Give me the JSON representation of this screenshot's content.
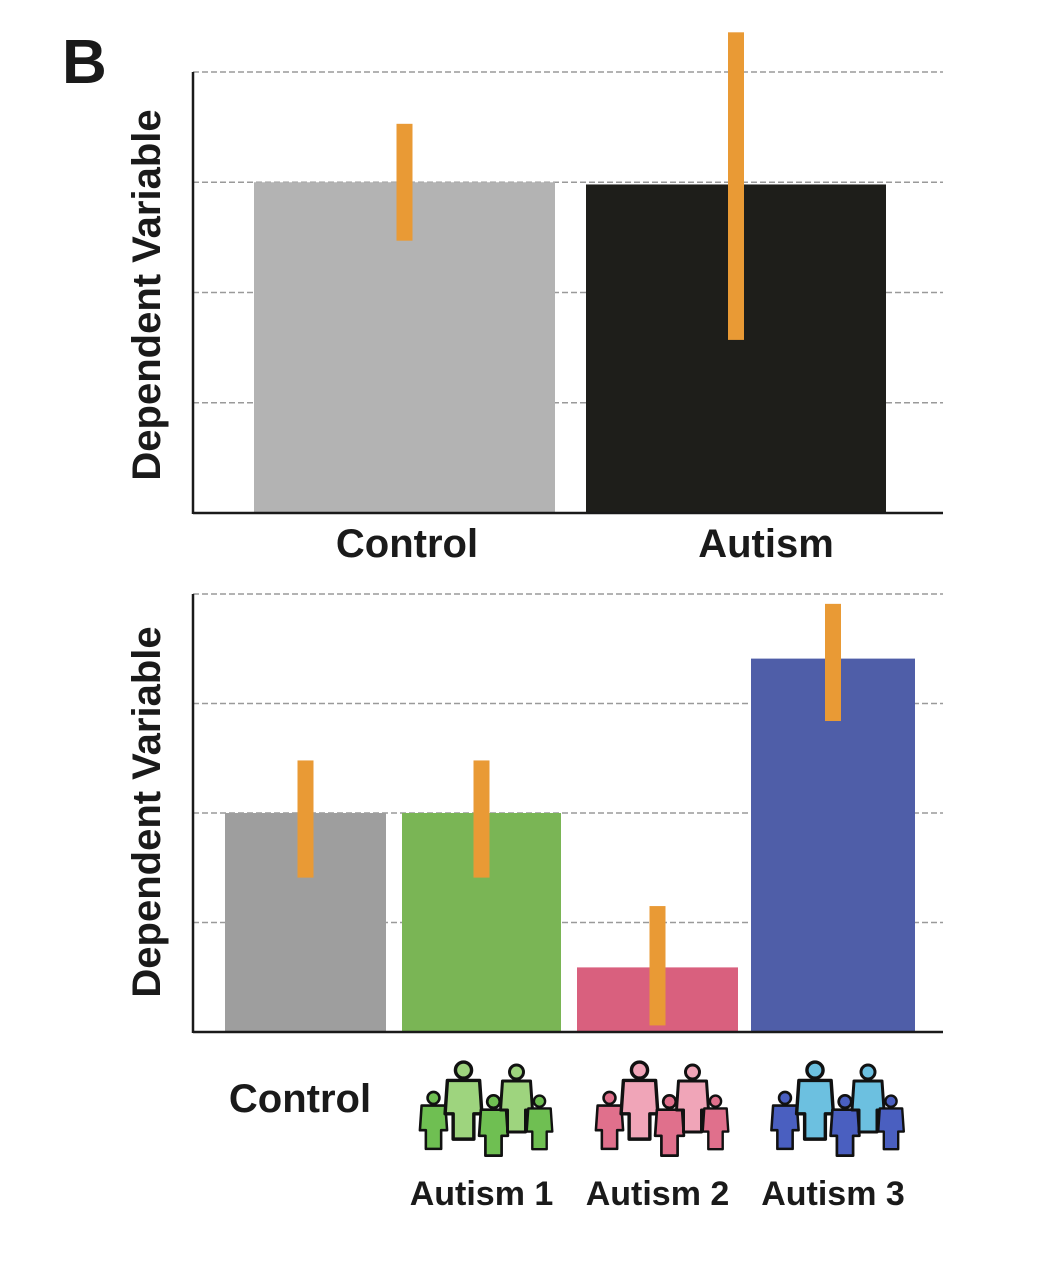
{
  "panel_label": "B",
  "colors": {
    "error_bar": "#e99a35",
    "grid": "#9a9a9a",
    "axis": "#1a1a1a"
  },
  "chart_data": [
    {
      "type": "bar",
      "ylabel": "Dependent Variable",
      "ylim": [
        0,
        4
      ],
      "grid": true,
      "gridlines": [
        1,
        2,
        3,
        4
      ],
      "tick_labels_shown": false,
      "categories": [
        "Control",
        "Autism"
      ],
      "values": [
        3.0,
        2.98
      ],
      "error_low": [
        2.47,
        1.57
      ],
      "error_high": [
        3.53,
        4.36
      ],
      "bar_colors": [
        "#b3b3b3",
        "#1e1e1a"
      ]
    },
    {
      "type": "bar",
      "ylabel": "Dependent Variable",
      "ylim": [
        0,
        4
      ],
      "grid": true,
      "gridlines": [
        1,
        2,
        3,
        4
      ],
      "tick_labels_shown": false,
      "categories": [
        "Control",
        "Autism 1",
        "Autism 2",
        "Autism 3"
      ],
      "values": [
        2.0,
        2.0,
        0.59,
        3.41
      ],
      "error_low": [
        1.41,
        1.41,
        0.06,
        2.84
      ],
      "error_high": [
        2.48,
        2.48,
        1.15,
        3.91
      ],
      "bar_colors": [
        "#9e9e9e",
        "#7ab555",
        "#d9607e",
        "#4f5ea8"
      ],
      "category_icons": [
        null,
        "people-group-green-icon",
        "people-group-pink-icon",
        "people-group-blue-icon"
      ],
      "icon_colors": [
        null,
        [
          "#6fbf52",
          "#9ed47e"
        ],
        [
          "#e0708c",
          "#f0a5b8"
        ],
        [
          "#4a5fc0",
          "#6cc0e0"
        ]
      ]
    }
  ]
}
